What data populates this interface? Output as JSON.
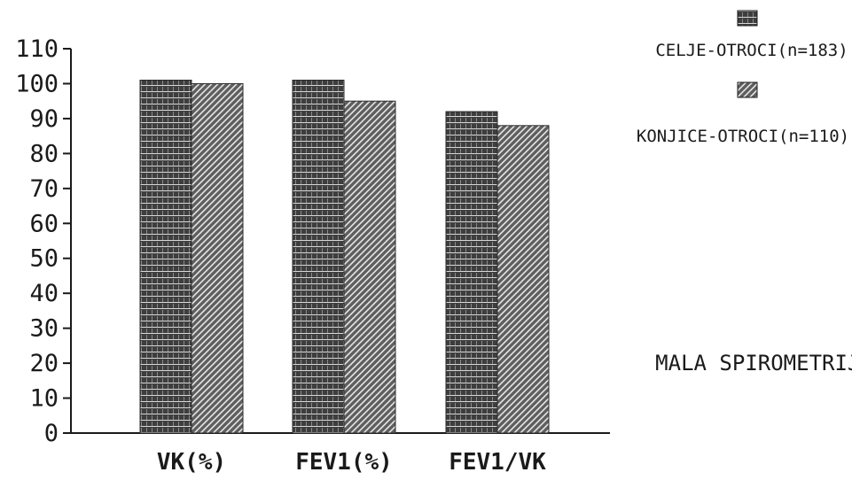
{
  "chart_data": {
    "type": "bar",
    "title": "MALA SPIROMETRIJA",
    "xlabel": "",
    "ylabel": "",
    "categories": [
      "VK(%)",
      "FEV1(%)",
      "FEV1/VK"
    ],
    "series": [
      {
        "name": "CELJE-OTROCI(n=183)",
        "values": [
          101,
          101,
          92
        ],
        "color": "#4a4a4a"
      },
      {
        "name": "KONJICE-OTROCI(n=110)",
        "values": [
          100,
          95,
          88
        ],
        "color": "#5a5a5a"
      }
    ],
    "ylim": [
      0,
      110
    ],
    "yticks": [
      0,
      10,
      20,
      30,
      40,
      50,
      60,
      70,
      80,
      90,
      100,
      110
    ],
    "ytick_labels": [
      "0",
      "10",
      "20",
      "30",
      "40",
      "50",
      "60",
      "70",
      "80",
      "90",
      "100",
      "110"
    ],
    "grid": false,
    "legend_position": "top-right"
  }
}
